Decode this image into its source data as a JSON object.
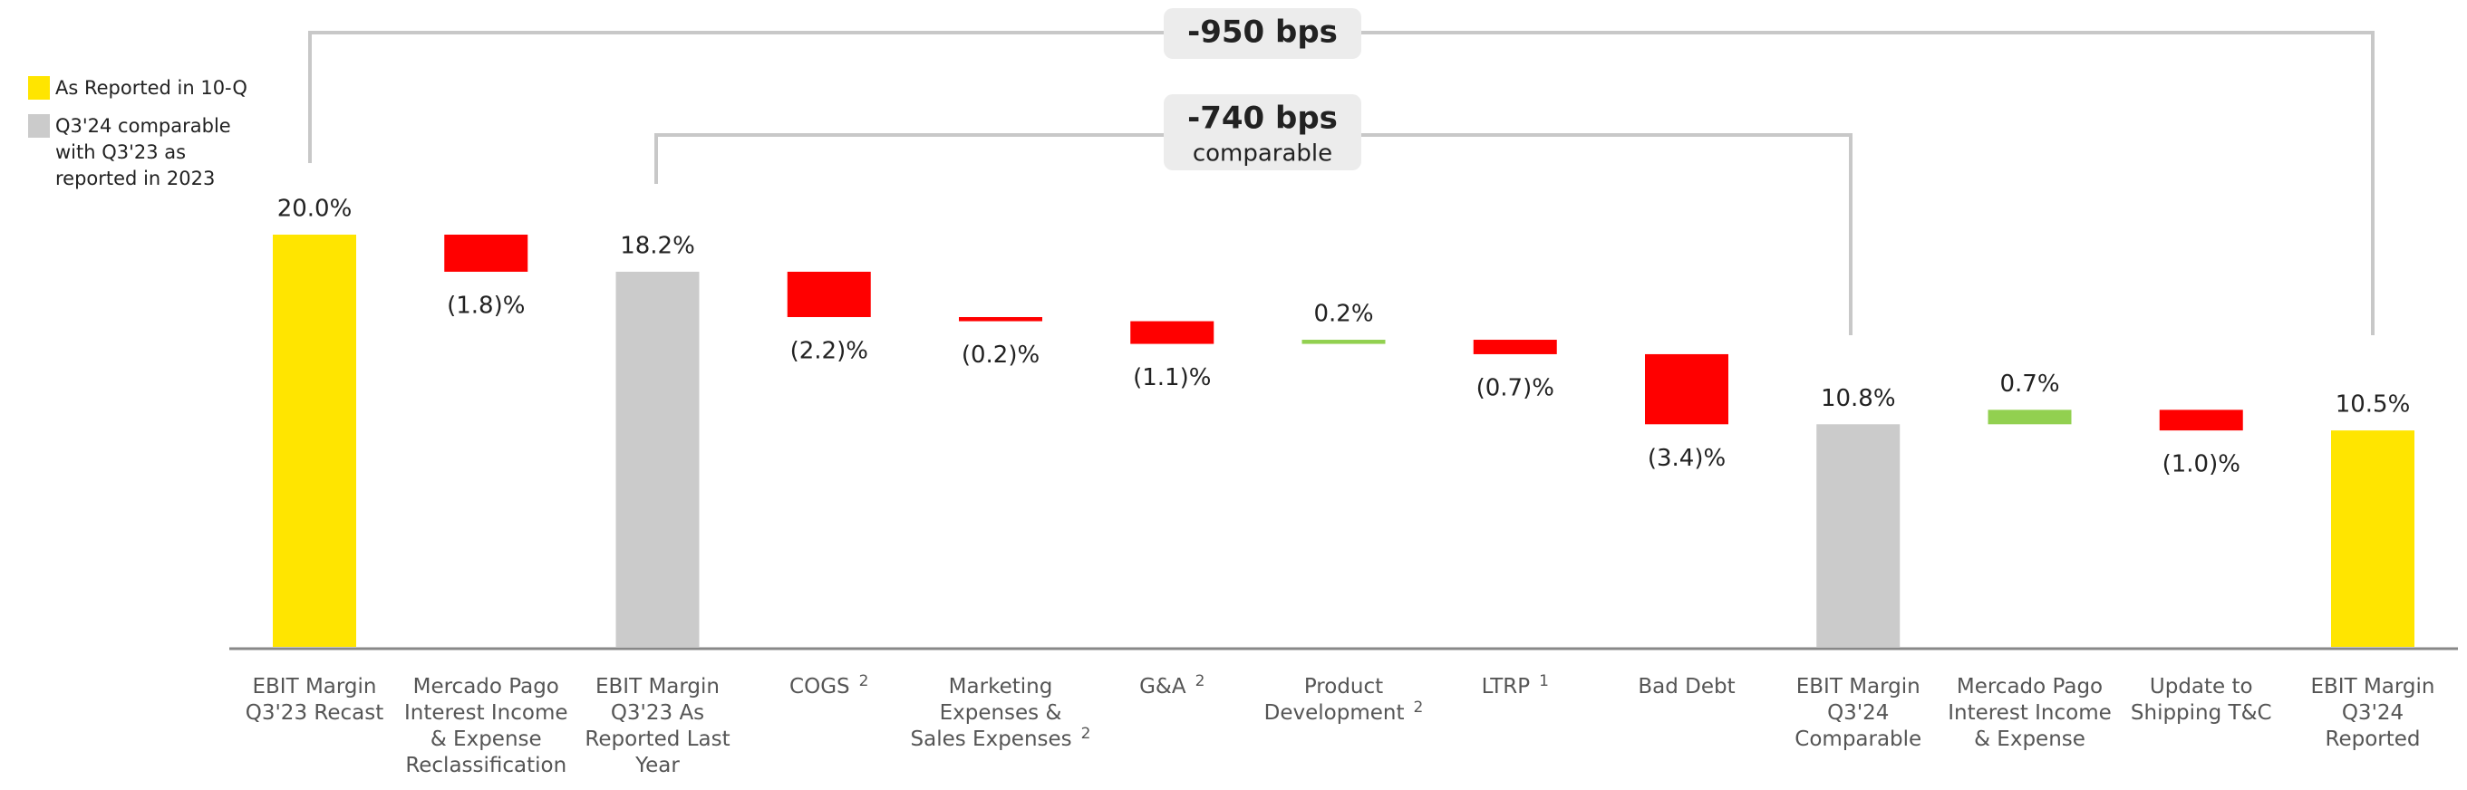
{
  "chart_data": {
    "type": "waterfall",
    "categories": [
      "EBIT Margin\nQ3'23 Recast",
      "Mercado Pago\nInterest Income\n& Expense\nReclassification",
      "EBIT Margin\nQ3'23 As\nReported Last\nYear",
      "COGS",
      "Marketing\nExpenses &\nSales Expenses",
      "G&A",
      "Product\nDevelopment",
      "LTRP",
      "Bad Debt",
      "EBIT Margin\nQ3'24\nComparable",
      "Mercado Pago\nInterest Income\n& Expense",
      "Update to\nShipping T&C",
      "EBIT Margin\nQ3'24\nReported"
    ],
    "footnotes": [
      null,
      null,
      null,
      "2",
      "2",
      "2",
      "2",
      "1",
      null,
      null,
      null,
      null,
      null
    ],
    "values": [
      20.0,
      -1.8,
      18.2,
      -2.2,
      -0.2,
      -1.1,
      0.2,
      -0.7,
      -3.4,
      10.8,
      0.7,
      -1.0,
      10.5
    ],
    "value_labels": [
      "20.0%",
      "(1.8)%",
      "18.2%",
      "(2.2)%",
      "(0.2)%",
      "(1.1)%",
      "0.2%",
      "(0.7)%",
      "(3.4)%",
      "10.8%",
      "0.7%",
      "(1.0)%",
      "10.5%"
    ],
    "bar_kind": [
      "total",
      "delta",
      "total",
      "delta",
      "delta",
      "delta",
      "delta",
      "delta",
      "delta",
      "total",
      "delta",
      "delta",
      "total"
    ],
    "colors": [
      "#FFE500",
      "#FF0000",
      "#CBCBCB",
      "#FF0000",
      "#FF0000",
      "#FF0000",
      "#92D050",
      "#FF0000",
      "#FF0000",
      "#CBCBCB",
      "#92D050",
      "#FF0000",
      "#FFE500"
    ],
    "ylim": [
      0,
      20
    ],
    "legend": [
      {
        "name": "As Reported in 10-Q",
        "color": "#FFE500"
      },
      {
        "name": "Q3'24 comparable\nwith Q3'23 as\nreported in 2023",
        "color": "#CBCBCB"
      }
    ],
    "annotations": [
      {
        "text": "-950 bps"
      },
      {
        "text": "-740 bps",
        "subtext": "comparable"
      }
    ]
  }
}
